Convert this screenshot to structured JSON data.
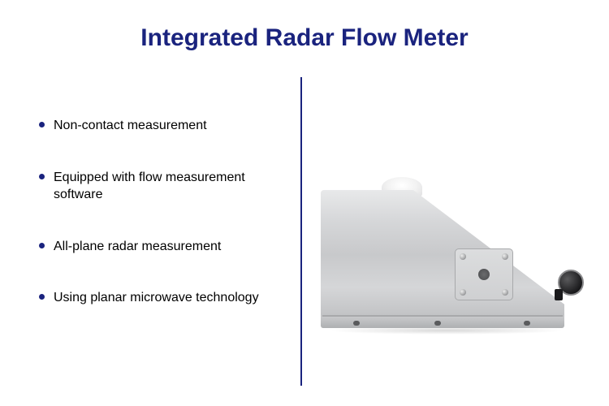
{
  "title": {
    "text": "Integrated Radar Flow Meter",
    "color": "#1a237e",
    "fontsize": 30
  },
  "divider": {
    "color": "#1a237e"
  },
  "bullet": {
    "color": "#1a237e"
  },
  "features": [
    "Non-contact measurement",
    "Equipped with flow measurement software",
    "All-plane radar measurement",
    "Using planar microwave technology"
  ],
  "device": {
    "description": "Silver metallic radar flow meter housing, trapezoidal side profile with square mounting plate (4 corner screws, center hole), black circular cable connector on right side, cylindrical lens on top.",
    "body_color": "#d5d6d8",
    "plate_color": "#cfd0d2",
    "connector_color": "#1a1a1c"
  },
  "background_color": "#ffffff"
}
